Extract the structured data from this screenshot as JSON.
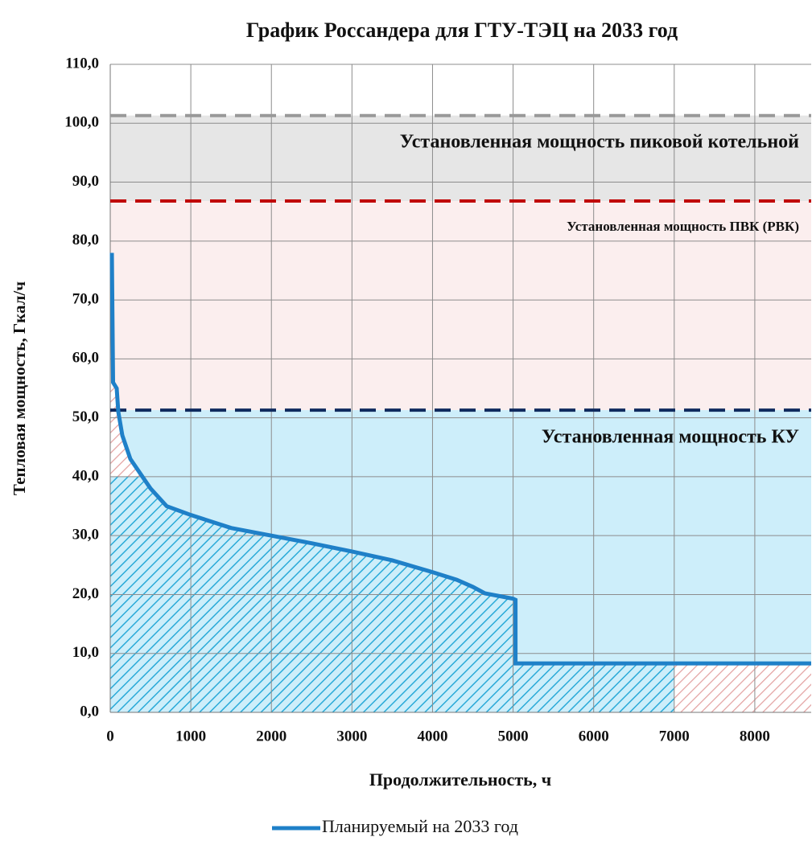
{
  "chart_data": {
    "type": "line",
    "title": "График Россандера для ГТУ-ТЭЦ  на 2033 год",
    "x_label": "Продолжительность, ч",
    "y_label": "Тепловая мощность, Гкал/ч",
    "xlim": [
      0,
      8700
    ],
    "ylim": [
      0,
      110
    ],
    "xticks": [
      0,
      1000,
      2000,
      3000,
      4000,
      5000,
      6000,
      7000,
      8000
    ],
    "yticks": [
      {
        "value": 0,
        "label": "0,0"
      },
      {
        "value": 10,
        "label": "10,0"
      },
      {
        "value": 20,
        "label": "20,0"
      },
      {
        "value": 30,
        "label": "30,0"
      },
      {
        "value": 40,
        "label": "40,0"
      },
      {
        "value": 50,
        "label": "50,0"
      },
      {
        "value": 60,
        "label": "60,0"
      },
      {
        "value": 70,
        "label": "70,0"
      },
      {
        "value": 80,
        "label": "80,0"
      },
      {
        "value": 90,
        "label": "90,0"
      },
      {
        "value": 100,
        "label": "100,0"
      },
      {
        "value": 110,
        "label": "110,0"
      }
    ],
    "grid": true,
    "series": [
      {
        "name": "Планируемый  на 2033 год",
        "color": "#1f80c8",
        "x": [
          20,
          35,
          80,
          100,
          150,
          250,
          400,
          500,
          700,
          1000,
          1500,
          2000,
          2500,
          3000,
          3500,
          4000,
          4300,
          4500,
          4650,
          5000,
          5030,
          5030,
          8700
        ],
        "values": [
          78,
          56,
          55,
          51,
          47,
          43,
          40,
          38,
          35,
          33.5,
          31.3,
          30,
          28.7,
          27.3,
          25.8,
          23.8,
          22.5,
          21.3,
          20.2,
          19.3,
          19.1,
          8.3,
          8.3
        ]
      }
    ],
    "levels": [
      {
        "label": "Установленная мощность пиковой котельной",
        "value": 101.3,
        "color": "#999999",
        "fill": "#e6e6e6"
      },
      {
        "label": "Установленная мощность ПВК (РВК)",
        "value": 86.8,
        "color": "#c00000",
        "fill": "#fbeeee"
      },
      {
        "label": "Установленная мощность КУ",
        "value": 51.3,
        "color": "#0f2a5e",
        "fill": "#cdeefa"
      }
    ],
    "hatch_limit": 40,
    "hatch_end": 7000
  }
}
